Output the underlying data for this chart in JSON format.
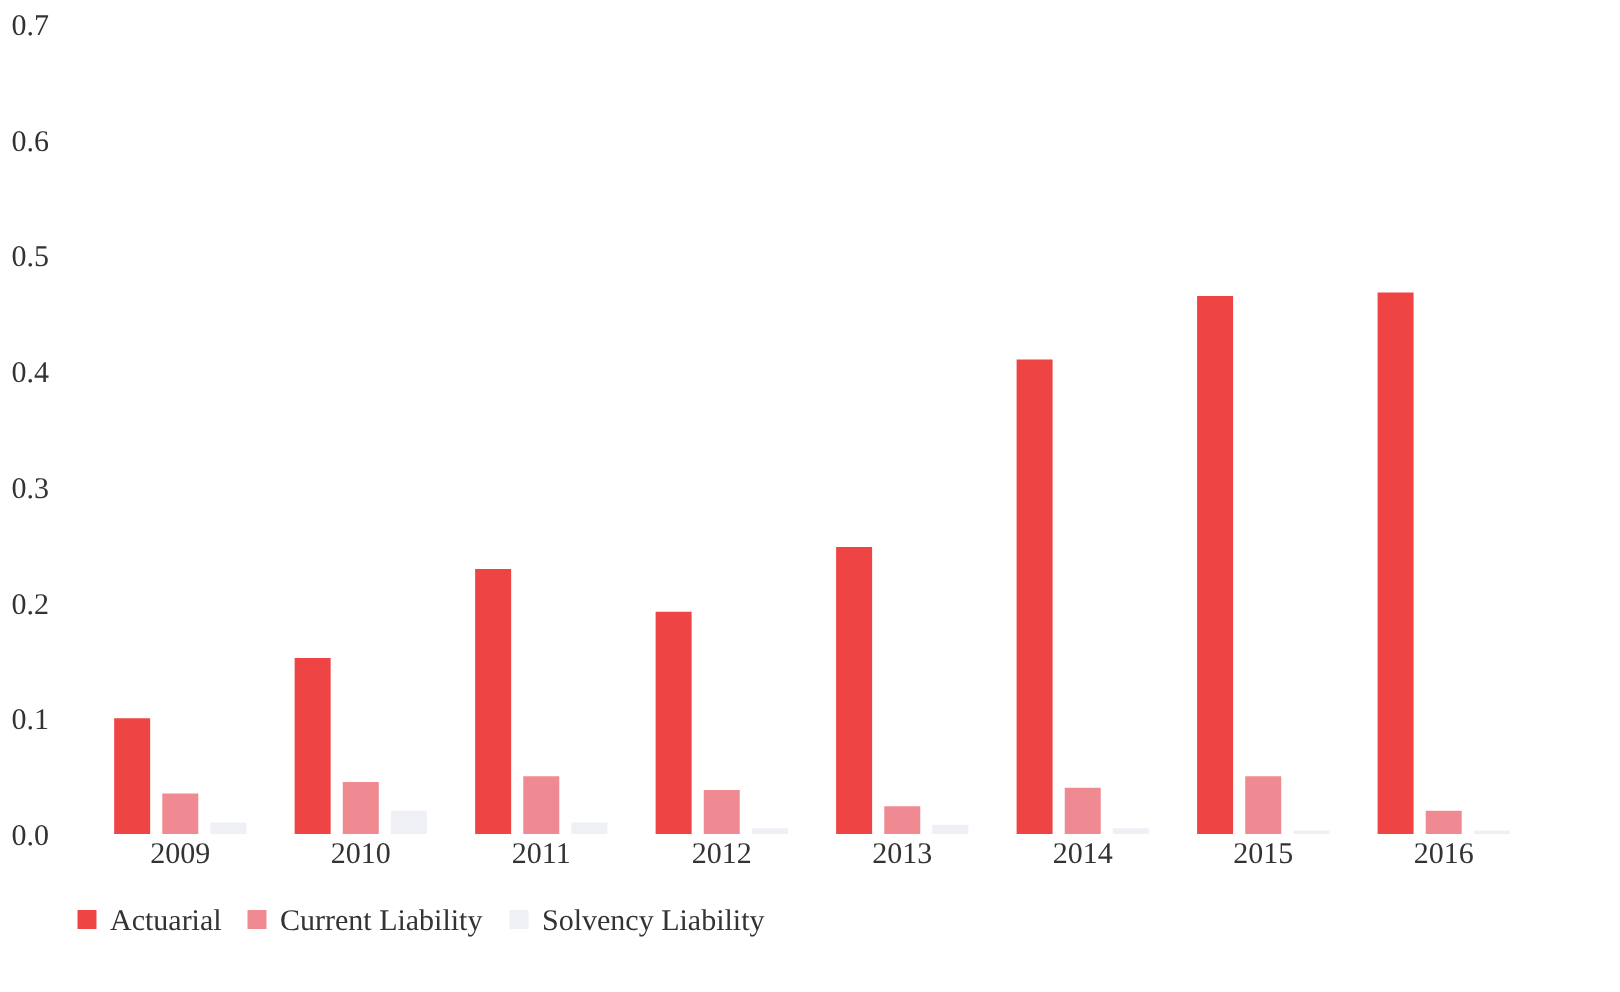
{
  "chart_data": {
    "type": "bar",
    "categories": [
      "2009",
      "2010",
      "2011",
      "2012",
      "2013",
      "2014",
      "2015",
      "2016"
    ],
    "series": [
      {
        "name": "Actuarial",
        "color": "#ee4444",
        "values": [
          0.1,
          0.152,
          0.229,
          0.192,
          0.248,
          0.41,
          0.465,
          0.468
        ]
      },
      {
        "name": "Current Liability",
        "color": "#f08a92",
        "values": [
          0.035,
          0.045,
          0.05,
          0.038,
          0.024,
          0.04,
          0.05,
          0.02
        ]
      },
      {
        "name": "Solvency Liability",
        "color": "#eef0f5",
        "values": [
          0.01,
          0.02,
          0.01,
          0.005,
          0.008,
          0.005,
          0.003,
          0.003
        ]
      }
    ],
    "ylim": [
      0,
      0.7
    ],
    "yticks": [
      {
        "value": 0,
        "label": "0.0"
      },
      0.1,
      0.2,
      0.3,
      0.4,
      0.5,
      0.6,
      0.7
    ],
    "grid": false,
    "legend": "bottom"
  }
}
